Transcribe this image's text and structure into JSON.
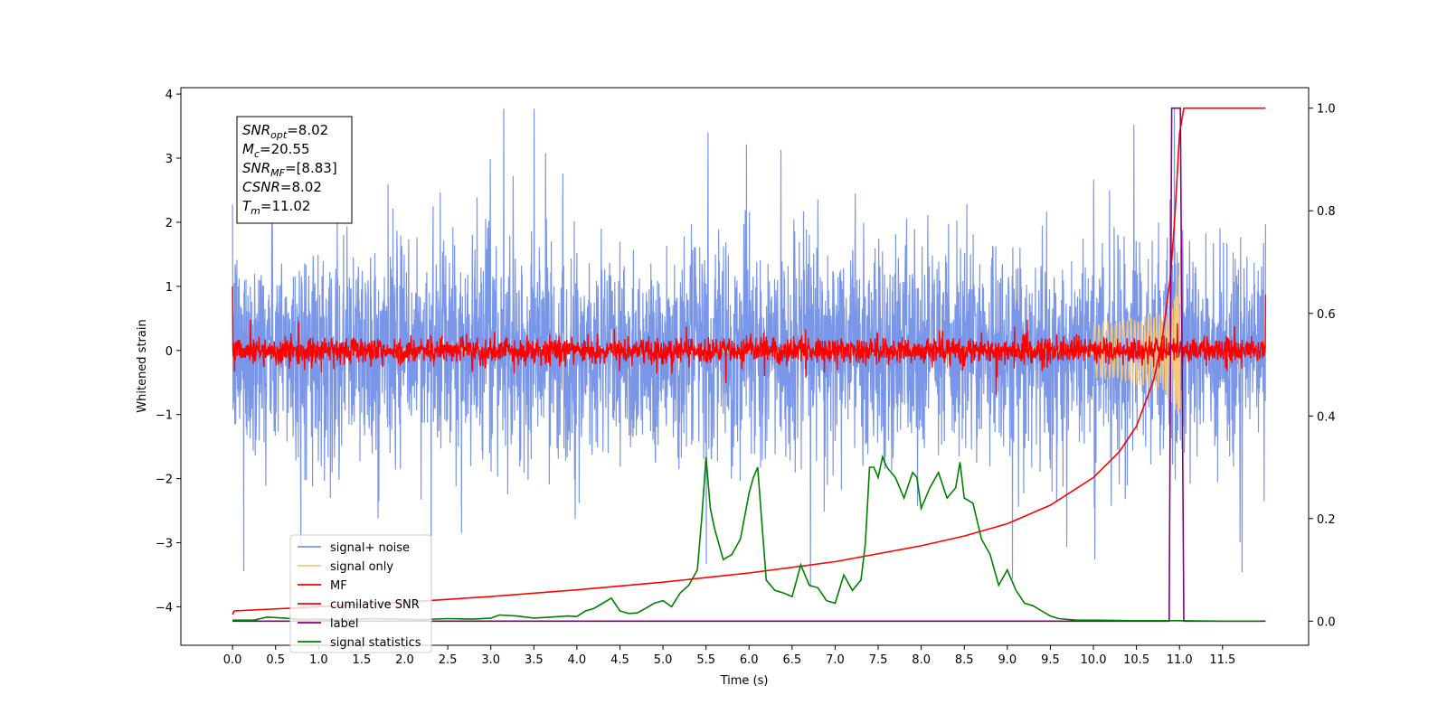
{
  "chart_data": {
    "type": "line",
    "xlabel": "Time (s)",
    "ylabel": "Whitened strain",
    "ylabel_right": "",
    "xlim": [
      -0.6,
      12.5
    ],
    "ylim": [
      -4.6,
      4.1
    ],
    "ylim_right": [
      -0.047,
      1.04
    ],
    "x_ticks": [
      "0.0",
      "0.5",
      "1.0",
      "1.5",
      "2.0",
      "2.5",
      "3.0",
      "3.5",
      "4.0",
      "4.5",
      "5.0",
      "5.5",
      "6.0",
      "6.5",
      "7.0",
      "7.5",
      "8.0",
      "8.5",
      "9.0",
      "9.5",
      "10.0",
      "10.5",
      "11.0",
      "11.5"
    ],
    "y_ticks_left": [
      "4",
      "3",
      "2",
      "1",
      "0",
      "−1",
      "−2",
      "−3",
      "−4"
    ],
    "y_ticks_right": [
      "1.0",
      "0.8",
      "0.6",
      "0.4",
      "0.2",
      "0.0"
    ],
    "grid": false,
    "legend_position": "lower-left",
    "annotation": {
      "lines": [
        {
          "var": "SNR",
          "sub": "opt",
          "value": "=8.02"
        },
        {
          "var": "M",
          "sub": "c",
          "value": "=20.55"
        },
        {
          "var": "SNR",
          "sub": "MF",
          "value": "=[8.83]"
        },
        {
          "var": "CSNR",
          "sub": "",
          "value": "=8.02"
        },
        {
          "var": "T",
          "sub": "m",
          "value": "=11.02"
        }
      ]
    },
    "series": [
      {
        "name": "signal+ noise",
        "color": "#7a96e8",
        "axis": "left",
        "kind": "noise",
        "x_range": [
          0.0,
          12.0
        ],
        "std": 1.0,
        "range": [
          -3.7,
          3.77
        ]
      },
      {
        "name": "signal only",
        "color": "#f5c97a",
        "axis": "left",
        "kind": "chirp",
        "x_range": [
          0.0,
          11.02
        ],
        "peak_amplitude": 1.6,
        "merger_time": 11.02
      },
      {
        "name": "MF",
        "color": "#ff0000",
        "axis": "left",
        "kind": "noise",
        "x_range": [
          0.0,
          12.0
        ],
        "std": 0.1,
        "start_value": 1.0,
        "end_value": 0.87
      },
      {
        "name": "cumilative SNR",
        "color": "#ff0000",
        "axis": "right",
        "x": [
          0.0,
          0.02,
          1.0,
          2.0,
          3.0,
          4.0,
          5.0,
          6.0,
          7.0,
          8.0,
          8.5,
          9.0,
          9.5,
          10.0,
          10.3,
          10.5,
          10.7,
          10.8,
          10.9,
          10.95,
          11.0,
          11.05,
          12.0
        ],
        "y": [
          0.013,
          0.02,
          0.028,
          0.037,
          0.048,
          0.061,
          0.076,
          0.094,
          0.116,
          0.147,
          0.166,
          0.19,
          0.226,
          0.28,
          0.33,
          0.38,
          0.47,
          0.55,
          0.68,
          0.8,
          0.95,
          1.0,
          1.0
        ]
      },
      {
        "name": "label",
        "color": "#800080",
        "axis": "right",
        "x": [
          0.0,
          10.88,
          10.91,
          11.01,
          11.05,
          11.07,
          11.08,
          12.0
        ],
        "y": [
          0.0,
          0.0,
          1.0,
          1.0,
          0.0,
          0.0,
          0.0,
          0.0
        ]
      },
      {
        "name": "signal statistics",
        "color": "#008000",
        "axis": "right",
        "x": [
          0.0,
          0.25,
          0.4,
          0.6,
          0.8,
          1.0,
          1.3,
          1.6,
          1.9,
          2.2,
          2.5,
          2.8,
          3.0,
          3.1,
          3.3,
          3.5,
          3.7,
          3.9,
          4.0,
          4.1,
          4.2,
          4.3,
          4.4,
          4.5,
          4.6,
          4.7,
          4.8,
          4.9,
          5.0,
          5.1,
          5.2,
          5.3,
          5.4,
          5.45,
          5.5,
          5.55,
          5.6,
          5.7,
          5.8,
          5.9,
          6.0,
          6.05,
          6.1,
          6.15,
          6.2,
          6.3,
          6.4,
          6.5,
          6.6,
          6.65,
          6.7,
          6.8,
          6.9,
          7.0,
          7.1,
          7.2,
          7.3,
          7.35,
          7.4,
          7.45,
          7.5,
          7.55,
          7.6,
          7.7,
          7.8,
          7.9,
          7.95,
          8.0,
          8.1,
          8.2,
          8.3,
          8.4,
          8.45,
          8.5,
          8.6,
          8.7,
          8.8,
          8.9,
          9.0,
          9.1,
          9.2,
          9.3,
          9.4,
          9.5,
          9.6,
          9.8,
          10.0,
          10.5,
          11.0,
          11.5,
          11.94
        ],
        "y": [
          0.002,
          0.002,
          0.008,
          0.006,
          0.003,
          0.004,
          0.002,
          0.005,
          0.004,
          0.003,
          0.005,
          0.004,
          0.006,
          0.012,
          0.01,
          0.006,
          0.008,
          0.01,
          0.009,
          0.02,
          0.025,
          0.035,
          0.045,
          0.02,
          0.015,
          0.016,
          0.025,
          0.035,
          0.04,
          0.028,
          0.055,
          0.07,
          0.1,
          0.2,
          0.32,
          0.22,
          0.18,
          0.12,
          0.13,
          0.16,
          0.25,
          0.28,
          0.3,
          0.19,
          0.08,
          0.06,
          0.055,
          0.048,
          0.11,
          0.09,
          0.07,
          0.065,
          0.04,
          0.035,
          0.09,
          0.06,
          0.08,
          0.15,
          0.3,
          0.3,
          0.28,
          0.32,
          0.3,
          0.28,
          0.24,
          0.29,
          0.28,
          0.22,
          0.26,
          0.29,
          0.24,
          0.26,
          0.31,
          0.24,
          0.23,
          0.16,
          0.13,
          0.07,
          0.1,
          0.06,
          0.035,
          0.03,
          0.02,
          0.01,
          0.005,
          0.002,
          0.002,
          0.001,
          0.001,
          0.0,
          0.0
        ]
      }
    ]
  }
}
